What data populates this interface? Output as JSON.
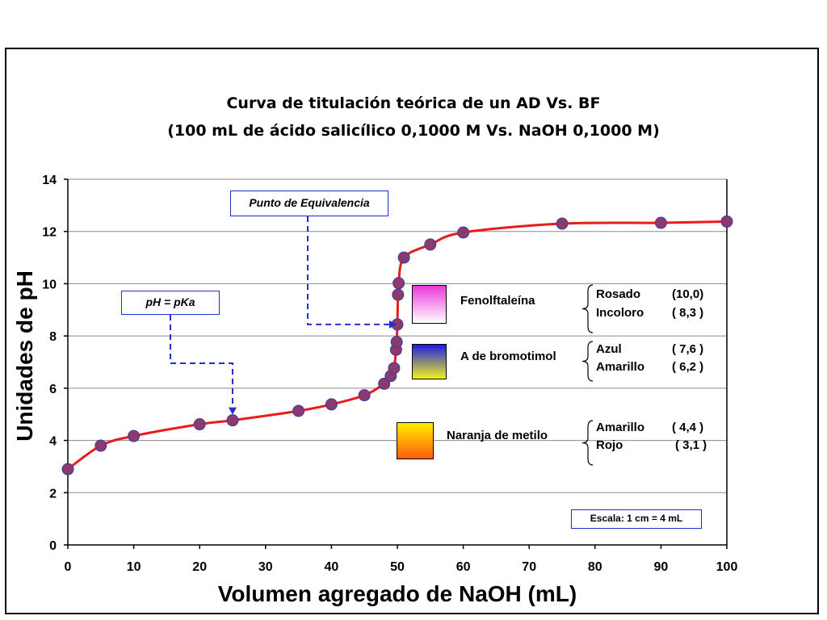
{
  "chart_data": {
    "type": "line",
    "title": "Curva de titulación teórica de un AD Vs. BF",
    "subtitle": "(100 mL de ácido salicílico 0,1000 M Vs. NaOH 0,1000 M)",
    "xlabel": "Volumen agregado de NaOH (mL)",
    "ylabel": "Unidades de pH",
    "xlim": [
      0,
      100
    ],
    "ylim": [
      0,
      14
    ],
    "xticks": [
      0,
      10,
      20,
      30,
      40,
      50,
      60,
      70,
      80,
      90,
      100
    ],
    "yticks": [
      0,
      2,
      4,
      6,
      8,
      10,
      12,
      14
    ],
    "grid": "horizontal",
    "series_color": "#e81c1c",
    "marker_color": "#8b3a6e",
    "points": [
      {
        "x": 0,
        "y": 2.9
      },
      {
        "x": 5,
        "y": 3.8
      },
      {
        "x": 10,
        "y": 4.17
      },
      {
        "x": 20,
        "y": 4.62
      },
      {
        "x": 25,
        "y": 4.77
      },
      {
        "x": 35,
        "y": 5.13
      },
      {
        "x": 40,
        "y": 5.38
      },
      {
        "x": 45,
        "y": 5.73
      },
      {
        "x": 48,
        "y": 6.17
      },
      {
        "x": 49,
        "y": 6.47
      },
      {
        "x": 49.5,
        "y": 6.77
      },
      {
        "x": 49.8,
        "y": 7.47
      },
      {
        "x": 49.9,
        "y": 7.77
      },
      {
        "x": 50,
        "y": 8.44
      },
      {
        "x": 50.1,
        "y": 9.58
      },
      {
        "x": 50.2,
        "y": 10.02
      },
      {
        "x": 51,
        "y": 11.0
      },
      {
        "x": 55,
        "y": 11.5
      },
      {
        "x": 60,
        "y": 11.96
      },
      {
        "x": 75,
        "y": 12.3
      },
      {
        "x": 90,
        "y": 12.33
      },
      {
        "x": 100,
        "y": 12.38
      }
    ],
    "annotations": [
      {
        "label": "Punto de Equivalencia",
        "target": {
          "x": 50,
          "y": 8.44
        }
      },
      {
        "label": "pH = pKa",
        "target": {
          "x": 25,
          "y": 4.77
        }
      }
    ],
    "scale_note": "Escala: 1 cm = 4 mL"
  },
  "indicators": [
    {
      "name": "Fenolftaleína",
      "gradient": [
        "#e838d8",
        "#ffffff"
      ],
      "colors": [
        {
          "color": "Rosado",
          "range": "(10,0)"
        },
        {
          "color": "Incoloro",
          "range": "( 8,3 )"
        }
      ]
    },
    {
      "name": "A de bromotimol",
      "gradient": [
        "#1c1ce6",
        "#f2f21c"
      ],
      "colors": [
        {
          "color": "Azul",
          "range": "( 7,6 )"
        },
        {
          "color": "Amarillo",
          "range": "( 6,2 )"
        }
      ]
    },
    {
      "name": "Naranja de metilo",
      "gradient": [
        "#ffee00",
        "#ff5a10"
      ],
      "colors": [
        {
          "color": "Amarillo",
          "range": "( 4,4 )"
        },
        {
          "color": "Rojo",
          "range": "( 3,1 )"
        }
      ]
    }
  ]
}
